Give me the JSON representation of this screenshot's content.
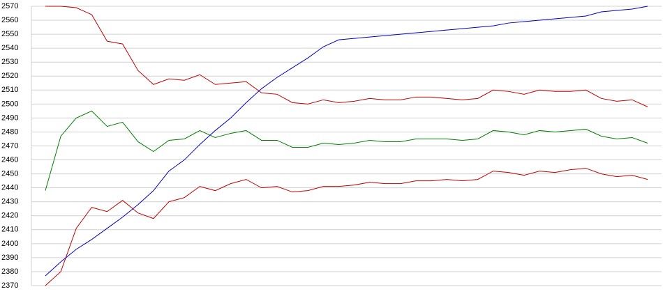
{
  "chart_data": {
    "type": "line",
    "categories": [
      null,
      null,
      null,
      null,
      null,
      null,
      null,
      null,
      null,
      null,
      null,
      null,
      null,
      null,
      null,
      null,
      null,
      null,
      null,
      null,
      null,
      null,
      null,
      null,
      null,
      null,
      null,
      null,
      null,
      null,
      null,
      null,
      null,
      null,
      null,
      null,
      null,
      null,
      null,
      null
    ],
    "series": [
      {
        "color": "#c00000",
        "values": [
          2570,
          2570,
          2569,
          2564,
          2545,
          2543,
          2524,
          2514,
          2518,
          2517,
          2521,
          2514,
          2515,
          2516,
          2508,
          2507,
          2501,
          2500,
          2503,
          2501,
          2502,
          2504,
          2503,
          2503,
          2505,
          2505,
          2504,
          2503,
          2504,
          2510,
          2509,
          2507,
          2510,
          2509,
          2509,
          2510,
          2504,
          2502,
          2503,
          2498
        ]
      },
      {
        "color": "#008000",
        "values": [
          2438,
          2477,
          2490,
          2495,
          2484,
          2487,
          2473,
          2466,
          2474,
          2475,
          2481,
          2476,
          2479,
          2481,
          2474,
          2474,
          2469,
          2469,
          2472,
          2471,
          2472,
          2474,
          2473,
          2473,
          2475,
          2475,
          2475,
          2474,
          2475,
          2481,
          2480,
          2478,
          2481,
          2480,
          2481,
          2482,
          2477,
          2475,
          2476,
          2472
        ]
      },
      {
        "color": "#c00000",
        "values": [
          2370,
          2380,
          2411,
          2426,
          2423,
          2431,
          2422,
          2418,
          2430,
          2433,
          2441,
          2438,
          2443,
          2446,
          2440,
          2441,
          2437,
          2438,
          2441,
          2441,
          2442,
          2444,
          2443,
          2443,
          2445,
          2445,
          2446,
          2445,
          2446,
          2452,
          2451,
          2449,
          2452,
          2451,
          2453,
          2454,
          2450,
          2448,
          2449,
          2446
        ]
      },
      {
        "color": "#0000c0",
        "values": [
          2377,
          2387,
          2396,
          2403,
          2411,
          2419,
          2428,
          2438,
          2452,
          2460,
          2471,
          2481,
          2490,
          2501,
          2511,
          2519,
          2526,
          2533,
          2541,
          2546,
          2547,
          2548,
          2549,
          2550,
          2551,
          2552,
          2553,
          2554,
          2555,
          2556,
          2558,
          2559,
          2560,
          2561,
          2562,
          2563,
          2566,
          2567,
          2568,
          2570
        ]
      }
    ],
    "ylim": [
      2370,
      2570
    ],
    "yticks": [
      2370,
      2380,
      2390,
      2400,
      2410,
      2420,
      2430,
      2440,
      2450,
      2460,
      2470,
      2480,
      2490,
      2500,
      2510,
      2520,
      2530,
      2540,
      2550,
      2560,
      2570
    ],
    "grid": true
  }
}
